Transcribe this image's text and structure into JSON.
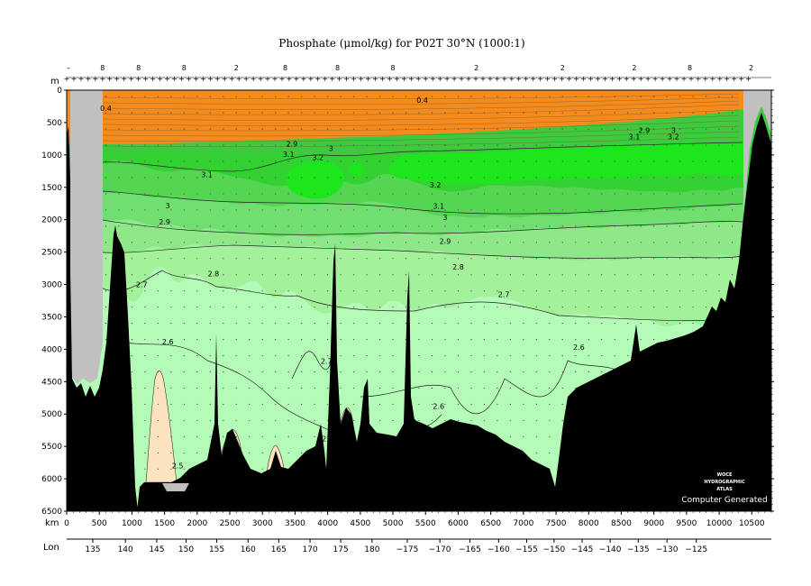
{
  "chart_data": {
    "type": "heatmap",
    "title": "Phosphate (μmol/kg) for P02T 30°N (1000:1)",
    "ylabel": "m",
    "xlabel": "km",
    "lon_label": "Lon",
    "y_ticks": [
      0,
      500,
      1000,
      1500,
      2000,
      2500,
      3000,
      3500,
      4000,
      4500,
      5000,
      5500,
      6000,
      6500
    ],
    "x_ticks": [
      0,
      500,
      1000,
      1500,
      2000,
      2500,
      3000,
      3500,
      4000,
      4500,
      5000,
      5500,
      6000,
      6500,
      7000,
      7500,
      8000,
      8500,
      9000,
      9500,
      10000,
      10500
    ],
    "ylim": [
      6500,
      0
    ],
    "xlim": [
      0,
      10800
    ],
    "lon_ticks": [
      {
        "km": 400,
        "label": "135"
      },
      {
        "km": 900,
        "label": "140"
      },
      {
        "km": 1380,
        "label": "145"
      },
      {
        "km": 1830,
        "label": "150"
      },
      {
        "km": 2300,
        "label": "155"
      },
      {
        "km": 2780,
        "label": "160"
      },
      {
        "km": 3250,
        "label": "165"
      },
      {
        "km": 3730,
        "label": "170"
      },
      {
        "km": 4200,
        "label": "175"
      },
      {
        "km": 4680,
        "label": "180"
      },
      {
        "km": 5220,
        "label": "−175"
      },
      {
        "km": 5720,
        "label": "−170"
      },
      {
        "km": 6180,
        "label": "−165"
      },
      {
        "km": 6620,
        "label": "−160"
      },
      {
        "km": 7050,
        "label": "−155"
      },
      {
        "km": 7470,
        "label": "−150"
      },
      {
        "km": 7900,
        "label": "−145"
      },
      {
        "km": 8330,
        "label": "−140"
      },
      {
        "km": 8760,
        "label": "−135"
      },
      {
        "km": 9200,
        "label": "−130"
      },
      {
        "km": 9650,
        "label": "−125"
      }
    ],
    "contour_levels": [
      {
        "value": 0.4,
        "color": "#f58a1d"
      },
      {
        "value": 2.5,
        "color": "#fbe3c0"
      },
      {
        "value": 2.6,
        "color": "#b5fbb8"
      },
      {
        "value": 2.7,
        "color": "#a3f29b"
      },
      {
        "value": 2.8,
        "color": "#8ee88a"
      },
      {
        "value": 2.9,
        "color": "#70df6f"
      },
      {
        "value": 3.0,
        "color": "#55d653"
      },
      {
        "value": 3.1,
        "color": "#34d133"
      },
      {
        "value": 3.2,
        "color": "#1ee61d"
      }
    ],
    "contour_labels": [
      {
        "text": "0.4",
        "x": 5450,
        "y": 150
      },
      {
        "text": "0.4",
        "x": 600,
        "y": 280
      },
      {
        "text": "2.9",
        "x": 3450,
        "y": 830
      },
      {
        "text": "3",
        "x": 4050,
        "y": 900
      },
      {
        "text": "3.1",
        "x": 3400,
        "y": 990
      },
      {
        "text": "3.2",
        "x": 3850,
        "y": 1040
      },
      {
        "text": "3.1",
        "x": 8700,
        "y": 720
      },
      {
        "text": "2.9",
        "x": 8850,
        "y": 620
      },
      {
        "text": "3",
        "x": 9300,
        "y": 620
      },
      {
        "text": "3.2",
        "x": 9300,
        "y": 720
      },
      {
        "text": "3.1",
        "x": 2150,
        "y": 1300
      },
      {
        "text": "3",
        "x": 1550,
        "y": 1780
      },
      {
        "text": "2.9",
        "x": 1500,
        "y": 2030
      },
      {
        "text": "3.2",
        "x": 5650,
        "y": 1460
      },
      {
        "text": "3.1",
        "x": 5700,
        "y": 1790
      },
      {
        "text": "3",
        "x": 5800,
        "y": 1960
      },
      {
        "text": "2.9",
        "x": 5800,
        "y": 2330
      },
      {
        "text": "2.8",
        "x": 2250,
        "y": 2830
      },
      {
        "text": "2.8",
        "x": 6000,
        "y": 2730
      },
      {
        "text": "2.7",
        "x": 1150,
        "y": 3000
      },
      {
        "text": "2.7",
        "x": 6700,
        "y": 3150
      },
      {
        "text": "2.6",
        "x": 1550,
        "y": 3880
      },
      {
        "text": "2.6",
        "x": 7850,
        "y": 3970
      },
      {
        "text": "2.7",
        "x": 3980,
        "y": 4180
      },
      {
        "text": "2.6",
        "x": 5700,
        "y": 4880
      },
      {
        "text": "2.5",
        "x": 1700,
        "y": 5800
      },
      {
        "text": "2.6",
        "x": 4000,
        "y": 5380
      }
    ],
    "station_labels": [
      {
        "km": 30,
        "text": "–"
      },
      {
        "km": 550,
        "text": "8"
      },
      {
        "km": 1100,
        "text": "8"
      },
      {
        "km": 1800,
        "text": "8"
      },
      {
        "km": 2600,
        "text": "2"
      },
      {
        "km": 3350,
        "text": "8"
      },
      {
        "km": 4150,
        "text": "8"
      },
      {
        "km": 5000,
        "text": "8"
      },
      {
        "km": 6280,
        "text": "2"
      },
      {
        "km": 7600,
        "text": "2"
      },
      {
        "km": 8700,
        "text": "2"
      },
      {
        "km": 9550,
        "text": "8"
      },
      {
        "km": 10490,
        "text": "2"
      }
    ],
    "watermark": {
      "line1": "WOCE",
      "line2": "HYDROGRAPHIC",
      "line3": "ATLAS",
      "line4": "Computer Generated"
    },
    "colors": {
      "orange": "#f58a1d",
      "bottom": "#000000",
      "land_gray": "#c0c0c0",
      "frame": "#000000"
    }
  }
}
